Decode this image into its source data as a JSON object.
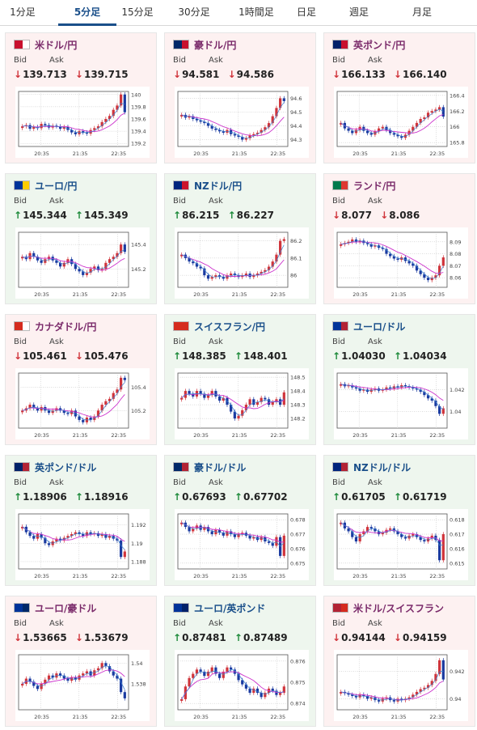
{
  "tabs": [
    {
      "label": "1分足",
      "active": false
    },
    {
      "label": "5分足",
      "active": true
    },
    {
      "label": "15分足",
      "active": false
    },
    {
      "label": "30分足",
      "active": false
    },
    {
      "label": "1時間足",
      "active": false
    },
    {
      "label": "日足",
      "active": false
    },
    {
      "label": "週足",
      "active": false
    },
    {
      "label": "月足",
      "active": false
    }
  ],
  "bid_label": "Bid",
  "ask_label": "Ask",
  "colors": {
    "down": "#d0343b",
    "up": "#1d8a3a",
    "ma": "#cc33cc",
    "blue": "#1a3aa0"
  },
  "pairs": [
    {
      "name": "米ドル/円",
      "dir": "down",
      "bid": "139.713",
      "ask": "139.715",
      "flags": [
        "#c8102e",
        "#ffffff"
      ],
      "chart_data": {
        "type": "candlestick",
        "x_ticks": [
          "20:35",
          "21:35",
          "22:35"
        ],
        "y_ticks": [
          "140",
          "139.8",
          "139.6",
          "139.4",
          "139.2"
        ],
        "ylim": [
          139.15,
          140.05
        ],
        "close": [
          139.48,
          139.5,
          139.44,
          139.47,
          139.45,
          139.52,
          139.5,
          139.46,
          139.49,
          139.48,
          139.44,
          139.47,
          139.42,
          139.38,
          139.35,
          139.4,
          139.38,
          139.36,
          139.42,
          139.45,
          139.48,
          139.55,
          139.6,
          139.65,
          139.75,
          139.82,
          140.0,
          139.71
        ]
      }
    },
    {
      "name": "豪ドル/円",
      "dir": "down",
      "bid": "94.581",
      "ask": "94.586",
      "flags": [
        "#002868",
        "#c8102e"
      ],
      "chart_data": {
        "type": "candlestick",
        "x_ticks": [
          "20:35",
          "21:35",
          "22:35"
        ],
        "y_ticks": [
          "94.6",
          "94.5",
          "94.4",
          "94.3"
        ],
        "ylim": [
          94.25,
          94.65
        ],
        "close": [
          94.48,
          94.46,
          94.47,
          94.45,
          94.44,
          94.43,
          94.42,
          94.4,
          94.38,
          94.37,
          94.36,
          94.35,
          94.37,
          94.34,
          94.33,
          94.32,
          94.3,
          94.31,
          94.33,
          94.34,
          94.35,
          94.37,
          94.39,
          94.42,
          94.47,
          94.53,
          94.6,
          94.58
        ]
      }
    },
    {
      "name": "英ポンド/円",
      "dir": "down",
      "bid": "166.133",
      "ask": "166.140",
      "flags": [
        "#012169",
        "#c8102e"
      ],
      "chart_data": {
        "type": "candlestick",
        "x_ticks": [
          "20:35",
          "21:35",
          "22:35"
        ],
        "y_ticks": [
          "166.4",
          "166.2",
          "166",
          "165.8"
        ],
        "ylim": [
          165.75,
          166.45
        ],
        "close": [
          166.05,
          165.98,
          165.95,
          165.92,
          165.96,
          166.0,
          165.95,
          165.92,
          165.9,
          165.94,
          165.98,
          166.0,
          165.96,
          165.92,
          165.9,
          165.88,
          165.86,
          165.9,
          165.95,
          166.0,
          166.05,
          166.1,
          166.12,
          166.18,
          166.2,
          166.22,
          166.25,
          166.13
        ]
      }
    },
    {
      "name": "ユーロ/円",
      "dir": "up",
      "bid": "145.344",
      "ask": "145.349",
      "flags": [
        "#003399",
        "#ffcc00"
      ],
      "chart_data": {
        "type": "candlestick",
        "x_ticks": [
          "20:35",
          "21:35",
          "22:35"
        ],
        "y_ticks": [
          "145.4",
          "145.2"
        ],
        "ylim": [
          145.05,
          145.5
        ],
        "close": [
          145.3,
          145.28,
          145.33,
          145.3,
          145.27,
          145.25,
          145.28,
          145.3,
          145.27,
          145.25,
          145.22,
          145.25,
          145.28,
          145.24,
          145.2,
          145.18,
          145.15,
          145.17,
          145.2,
          145.22,
          145.19,
          145.2,
          145.25,
          145.28,
          145.3,
          145.33,
          145.4,
          145.34
        ]
      }
    },
    {
      "name": "NZドル/円",
      "dir": "up",
      "bid": "86.215",
      "ask": "86.227",
      "flags": [
        "#00247d",
        "#cc142b"
      ],
      "chart_data": {
        "type": "candlestick",
        "x_ticks": [
          "20:35",
          "21:35",
          "22:35"
        ],
        "y_ticks": [
          "86.2",
          "86.1",
          "86"
        ],
        "ylim": [
          85.93,
          86.25
        ],
        "close": [
          86.12,
          86.1,
          86.08,
          86.07,
          86.05,
          86.04,
          86.0,
          85.98,
          85.99,
          86.0,
          85.99,
          85.98,
          86.0,
          86.01,
          86.0,
          85.99,
          86.0,
          86.01,
          85.99,
          86.0,
          86.01,
          86.02,
          86.03,
          86.05,
          86.08,
          86.12,
          86.2,
          86.21
        ]
      }
    },
    {
      "name": "ランド/円",
      "dir": "down",
      "bid": "8.077",
      "ask": "8.086",
      "flags": [
        "#007a4d",
        "#de3831"
      ],
      "chart_data": {
        "type": "candlestick",
        "x_ticks": [
          "20:35",
          "21:35",
          "22:35"
        ],
        "y_ticks": [
          "8.09",
          "8.08",
          "8.07",
          "8.06"
        ],
        "ylim": [
          8.052,
          8.098
        ],
        "close": [
          8.088,
          8.089,
          8.09,
          8.092,
          8.09,
          8.091,
          8.089,
          8.088,
          8.086,
          8.087,
          8.085,
          8.084,
          8.08,
          8.078,
          8.076,
          8.075,
          8.077,
          8.074,
          8.072,
          8.07,
          8.066,
          8.063,
          8.06,
          8.058,
          8.06,
          8.062,
          8.07,
          8.077
        ]
      }
    },
    {
      "name": "カナダドル/円",
      "dir": "down",
      "bid": "105.461",
      "ask": "105.476",
      "flags": [
        "#d52b1e",
        "#ffffff"
      ],
      "chart_data": {
        "type": "candlestick",
        "x_ticks": [
          "20:35",
          "21:35",
          "22:35"
        ],
        "y_ticks": [
          "105.4",
          "105.2"
        ],
        "ylim": [
          105.05,
          105.52
        ],
        "close": [
          105.2,
          105.22,
          105.25,
          105.22,
          105.2,
          105.23,
          105.2,
          105.18,
          105.2,
          105.22,
          105.2,
          105.18,
          105.17,
          105.2,
          105.15,
          105.12,
          105.1,
          105.14,
          105.12,
          105.15,
          105.2,
          105.25,
          105.28,
          105.3,
          105.35,
          105.38,
          105.48,
          105.46
        ]
      }
    },
    {
      "name": "スイスフラン/円",
      "dir": "up",
      "bid": "148.385",
      "ask": "148.401",
      "flags": [
        "#d52b1e",
        "#d52b1e"
      ],
      "chart_data": {
        "type": "candlestick",
        "x_ticks": [
          "20:35",
          "21:35",
          "22:35"
        ],
        "y_ticks": [
          "148.5",
          "148.4",
          "148.3",
          "148.2"
        ],
        "ylim": [
          148.13,
          148.53
        ],
        "close": [
          148.35,
          148.4,
          148.38,
          148.36,
          148.4,
          148.38,
          148.35,
          148.37,
          148.4,
          148.36,
          148.33,
          148.35,
          148.3,
          148.25,
          148.2,
          148.22,
          148.26,
          148.3,
          148.34,
          148.3,
          148.32,
          148.35,
          148.34,
          148.3,
          148.32,
          148.34,
          148.3,
          148.39
        ]
      }
    },
    {
      "name": "ユーロ/ドル",
      "dir": "up",
      "bid": "1.04030",
      "ask": "1.04034",
      "flags": [
        "#003399",
        "#b22234"
      ],
      "chart_data": {
        "type": "candlestick",
        "x_ticks": [
          "20:35",
          "21:35",
          "22:35"
        ],
        "y_ticks": [
          "1.042",
          "1.04"
        ],
        "ylim": [
          1.0385,
          1.0435
        ],
        "close": [
          1.0425,
          1.0423,
          1.0424,
          1.0422,
          1.0421,
          1.0419,
          1.042,
          1.0418,
          1.042,
          1.0421,
          1.0419,
          1.042,
          1.0422,
          1.0421,
          1.0423,
          1.0422,
          1.0424,
          1.0423,
          1.0422,
          1.0421,
          1.042,
          1.0418,
          1.0415,
          1.0412,
          1.041,
          1.0405,
          1.0398,
          1.0403
        ]
      }
    },
    {
      "name": "英ポンド/ドル",
      "dir": "up",
      "bid": "1.18906",
      "ask": "1.18916",
      "flags": [
        "#012169",
        "#b22234"
      ],
      "chart_data": {
        "type": "candlestick",
        "x_ticks": [
          "20:35",
          "21:35",
          "22:35"
        ],
        "y_ticks": [
          "1.192",
          "1.19",
          "1.188"
        ],
        "ylim": [
          1.1872,
          1.1932
        ],
        "close": [
          1.1918,
          1.1912,
          1.1908,
          1.1905,
          1.191,
          1.1906,
          1.19,
          1.1898,
          1.1902,
          1.1905,
          1.1903,
          1.1906,
          1.1908,
          1.191,
          1.1912,
          1.191,
          1.1908,
          1.1912,
          1.191,
          1.1911,
          1.1908,
          1.191,
          1.1906,
          1.1908,
          1.1905,
          1.1903,
          1.1885,
          1.1891
        ]
      }
    },
    {
      "name": "豪ドル/ドル",
      "dir": "up",
      "bid": "0.67693",
      "ask": "0.67702",
      "flags": [
        "#002868",
        "#b22234"
      ],
      "chart_data": {
        "type": "candlestick",
        "x_ticks": [
          "20:35",
          "21:35",
          "22:35"
        ],
        "y_ticks": [
          "0.678",
          "0.677",
          "0.676",
          "0.675"
        ],
        "ylim": [
          0.6746,
          0.6784
        ],
        "close": [
          0.6778,
          0.6775,
          0.6772,
          0.6774,
          0.6776,
          0.6773,
          0.6775,
          0.6772,
          0.677,
          0.6773,
          0.6771,
          0.6769,
          0.6772,
          0.677,
          0.6768,
          0.677,
          0.6771,
          0.6769,
          0.6767,
          0.6768,
          0.6766,
          0.6768,
          0.6765,
          0.6764,
          0.6762,
          0.6768,
          0.6755,
          0.6769
        ]
      }
    },
    {
      "name": "NZドル/ドル",
      "dir": "up",
      "bid": "0.61705",
      "ask": "0.61719",
      "flags": [
        "#00247d",
        "#b22234"
      ],
      "chart_data": {
        "type": "candlestick",
        "x_ticks": [
          "20:35",
          "21:35",
          "22:35"
        ],
        "y_ticks": [
          "0.618",
          "0.617",
          "0.616",
          "0.615"
        ],
        "ylim": [
          0.6146,
          0.6184
        ],
        "close": [
          0.6178,
          0.6174,
          0.6172,
          0.6168,
          0.6165,
          0.617,
          0.6172,
          0.6175,
          0.6174,
          0.6172,
          0.617,
          0.6171,
          0.6173,
          0.6174,
          0.6172,
          0.617,
          0.6168,
          0.6167,
          0.6169,
          0.617,
          0.6168,
          0.6166,
          0.6165,
          0.6167,
          0.6169,
          0.6166,
          0.6152,
          0.617
        ]
      }
    },
    {
      "name": "ユーロ/豪ドル",
      "dir": "down",
      "bid": "1.53665",
      "ask": "1.53679",
      "flags": [
        "#003399",
        "#002868"
      ],
      "chart_data": {
        "type": "candlestick",
        "x_ticks": [
          "20:35",
          "21:35",
          "22:35"
        ],
        "y_ticks": [
          "1.54",
          "1.538"
        ],
        "ylim": [
          1.5355,
          1.5408
        ],
        "close": [
          1.538,
          1.5385,
          1.5382,
          1.5378,
          1.5375,
          1.538,
          1.5384,
          1.5388,
          1.5386,
          1.539,
          1.5388,
          1.5385,
          1.5383,
          1.5386,
          1.5384,
          1.5388,
          1.539,
          1.5392,
          1.5388,
          1.5393,
          1.5395,
          1.54,
          1.5397,
          1.5392,
          1.5388,
          1.5385,
          1.5372,
          1.5366
        ]
      }
    },
    {
      "name": "ユーロ/英ポンド",
      "dir": "up",
      "bid": "0.87481",
      "ask": "0.87489",
      "flags": [
        "#003399",
        "#012169"
      ],
      "chart_data": {
        "type": "candlestick",
        "x_ticks": [
          "20:35",
          "21:35",
          "22:35"
        ],
        "y_ticks": [
          "0.876",
          "0.875",
          "0.874"
        ],
        "ylim": [
          0.8737,
          0.8763
        ],
        "close": [
          0.8742,
          0.8748,
          0.8752,
          0.8754,
          0.8756,
          0.8755,
          0.8753,
          0.8755,
          0.8757,
          0.8754,
          0.8752,
          0.8755,
          0.8757,
          0.8756,
          0.8754,
          0.8751,
          0.8749,
          0.8747,
          0.8745,
          0.8747,
          0.8745,
          0.8743,
          0.8745,
          0.8747,
          0.8746,
          0.8744,
          0.8745,
          0.8748
        ]
      }
    },
    {
      "name": "米ドル/スイスフラン",
      "dir": "down",
      "bid": "0.94144",
      "ask": "0.94159",
      "flags": [
        "#b22234",
        "#d52b1e"
      ],
      "chart_data": {
        "type": "candlestick",
        "x_ticks": [
          "20:35",
          "21:35",
          "22:35"
        ],
        "y_ticks": [
          "0.942",
          "0.94"
        ],
        "ylim": [
          0.9392,
          0.9432
        ],
        "close": [
          0.9405,
          0.9404,
          0.9403,
          0.9402,
          0.9401,
          0.9403,
          0.9402,
          0.94,
          0.9401,
          0.9399,
          0.9398,
          0.94,
          0.9401,
          0.9399,
          0.9398,
          0.94,
          0.9399,
          0.94,
          0.9401,
          0.9403,
          0.9405,
          0.9407,
          0.9408,
          0.941,
          0.9413,
          0.9418,
          0.9428,
          0.9414
        ]
      }
    }
  ]
}
